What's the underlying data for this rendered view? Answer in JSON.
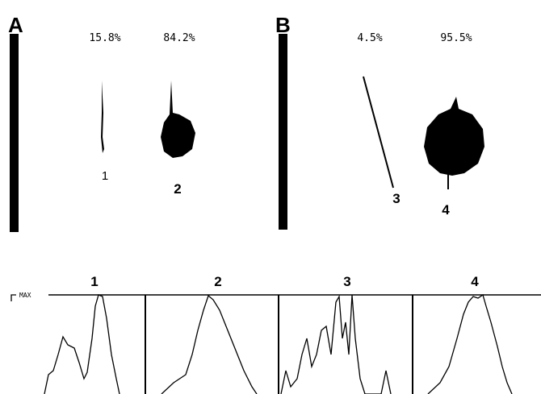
{
  "panels": [
    {
      "label": "A",
      "percentages": [
        "15.8%",
        "84.2%"
      ],
      "spots": [
        "1",
        "2"
      ]
    },
    {
      "label": "B",
      "percentages": [
        "4.5%",
        "95.5%"
      ],
      "spots": [
        "3",
        "4"
      ]
    }
  ],
  "traces": {
    "max_label": "MAX",
    "panels": [
      "1",
      "2",
      "3",
      "4"
    ]
  }
}
